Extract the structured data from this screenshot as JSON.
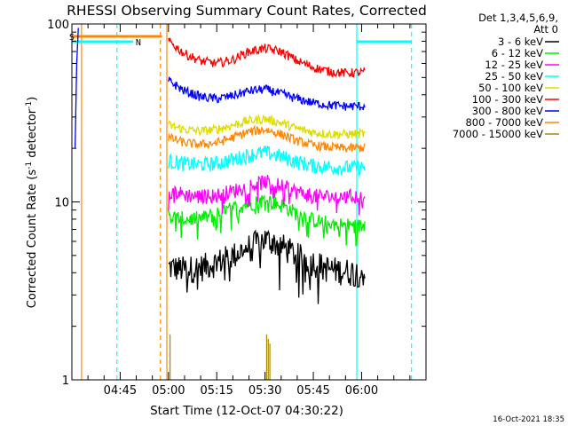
{
  "chart_data": {
    "type": "line",
    "title": "RHESSI Observing Summary Count Rates, Corrected",
    "xlabel": "Start Time (12-Oct-07 04:30:22)",
    "ylabel_main": "Corrected Count Rate (s",
    "ylabel_sup1": "-1",
    "ylabel_mid": " detector",
    "ylabel_sup2": "-1",
    "ylabel_end": ")",
    "y_scale": "log",
    "ylim": [
      1,
      100
    ],
    "xlim_minutes": [
      0,
      110
    ],
    "x_ticks": [
      {
        "t": 15,
        "label": "04:45"
      },
      {
        "t": 30,
        "label": "05:00"
      },
      {
        "t": 45,
        "label": "05:15"
      },
      {
        "t": 60,
        "label": "05:30"
      },
      {
        "t": 75,
        "label": "05:45"
      },
      {
        "t": 90,
        "label": "06:00"
      }
    ],
    "y_ticks": [
      {
        "v": 1,
        "label": "1"
      },
      {
        "v": 10,
        "label": "10"
      },
      {
        "v": 100,
        "label": "100"
      }
    ],
    "legend_header": [
      "Det 1,3,4,5,6,9,",
      "Att 0"
    ],
    "legend_placement": "right",
    "series": [
      {
        "name": "3 - 6 keV",
        "color": "#000000",
        "x": [
          30,
          35,
          40,
          45,
          50,
          55,
          60,
          65,
          70,
          75,
          80,
          85,
          91
        ],
        "values": [
          4.3,
          4.2,
          4.3,
          4.6,
          5.0,
          5.6,
          6.2,
          5.7,
          5.0,
          4.6,
          4.2,
          4.1,
          4.0
        ]
      },
      {
        "name": "6 - 12 keV",
        "color": "#00ee00",
        "x": [
          30,
          35,
          40,
          45,
          50,
          55,
          60,
          65,
          70,
          75,
          80,
          85,
          91
        ],
        "values": [
          8.3,
          8.0,
          8.1,
          8.5,
          9.2,
          9.8,
          10.3,
          9.6,
          8.6,
          7.9,
          7.6,
          7.4,
          7.3
        ]
      },
      {
        "name": "12 - 25 keV",
        "color": "#ff00ff",
        "x": [
          30,
          35,
          40,
          45,
          50,
          55,
          60,
          65,
          70,
          75,
          80,
          85,
          91
        ],
        "values": [
          11.6,
          11.0,
          10.7,
          10.9,
          11.5,
          12.3,
          13.0,
          12.3,
          11.4,
          10.8,
          10.7,
          10.7,
          10.8
        ]
      },
      {
        "name": "25 - 50 keV",
        "color": "#00ffff",
        "x": [
          30,
          35,
          40,
          45,
          50,
          55,
          60,
          65,
          70,
          75,
          80,
          85,
          91
        ],
        "values": [
          17.0,
          16.4,
          16.2,
          16.5,
          17.3,
          18.3,
          19.0,
          18.0,
          16.8,
          16.0,
          15.7,
          15.6,
          15.7
        ]
      },
      {
        "name": "50 - 100 keV",
        "color": "#dddd00",
        "x": [
          30,
          35,
          40,
          45,
          50,
          55,
          60,
          65,
          70,
          75,
          80,
          85,
          91
        ],
        "values": [
          27.0,
          25.5,
          25.0,
          25.6,
          27.0,
          28.6,
          29.3,
          27.8,
          25.8,
          24.6,
          24.1,
          24.0,
          24.2
        ]
      },
      {
        "name": "100 - 300 keV",
        "color": "#ff0000",
        "x": [
          30,
          35,
          40,
          45,
          50,
          55,
          60,
          65,
          70,
          75,
          80,
          85,
          91
        ],
        "values": [
          80.0,
          68.0,
          62.0,
          60.0,
          63.0,
          70.0,
          73.0,
          70.0,
          62.0,
          57.0,
          54.0,
          53.0,
          53.5
        ]
      },
      {
        "name": "300 - 800 keV",
        "color": "#0000ff",
        "x": [
          30,
          35,
          40,
          45,
          50,
          55,
          60,
          65,
          70,
          75,
          80,
          85,
          91
        ],
        "values": [
          48.0,
          42.0,
          39.0,
          38.0,
          39.5,
          42.0,
          43.0,
          40.5,
          38.0,
          36.0,
          35.0,
          34.5,
          34.5
        ]
      },
      {
        "name": "800 - 7000 keV",
        "color": "#ff8800",
        "x": [
          30,
          35,
          40,
          45,
          50,
          55,
          60,
          65,
          70,
          75,
          80,
          85,
          91
        ],
        "values": [
          23.0,
          21.5,
          21.0,
          21.5,
          23.0,
          24.8,
          25.5,
          24.0,
          22.0,
          20.8,
          20.3,
          20.0,
          20.2
        ]
      },
      {
        "name": "7000 - 15000 keV",
        "color": "#aa8800",
        "x": [
          30,
          91
        ],
        "values": [
          1,
          1
        ]
      }
    ],
    "annotations": [
      {
        "label": "N",
        "color": "#00cccc"
      },
      {
        "label": "S",
        "color": "#ff8800"
      }
    ],
    "timestamp": "16-Oct-2021 18:35"
  }
}
